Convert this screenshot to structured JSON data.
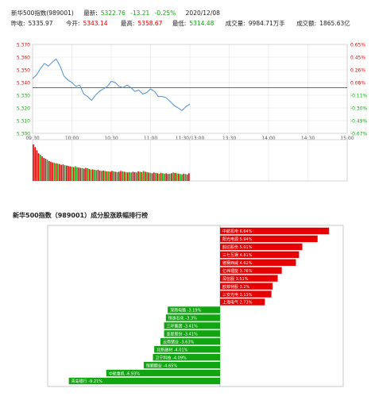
{
  "header": {
    "name": "新华500指数(989001)",
    "latest_label": "最新:",
    "latest_value": "5322.76",
    "change": "-13.21",
    "change_pct": "-0.25%",
    "date": "2020/12/08",
    "prev_close_label": "昨收:",
    "prev_close": "5335.97",
    "open_label": "今开:",
    "open": "5343.14",
    "high_label": "最高:",
    "high": "5358.67",
    "low_label": "最低:",
    "low": "5314.48",
    "volume_label": "成交量:",
    "volume": "9984.71万手",
    "turnover_label": "成交额:",
    "turnover": "1865.63亿"
  },
  "colors": {
    "up": "#e60000",
    "down": "#11a611",
    "price_line": "#4a90d9",
    "grid": "#e5e5e5",
    "ref_line": "#555555"
  },
  "chart_data": [
    {
      "type": "line",
      "xlabel": "",
      "ylabel": "",
      "ref_price": 5335.97,
      "ylim": [
        5300,
        5370
      ],
      "y_ticks_left": [
        "5.370",
        "5.360",
        "5.350",
        "5.340",
        "5.330",
        "5.320",
        "5.310",
        "5.300"
      ],
      "y_ticks_right": [
        "0.65%",
        "0.45%",
        "0.26%",
        "0.08%",
        "-0.11%",
        "-0.30%",
        "-0.49%",
        "-0.67%"
      ],
      "x_ticks": [
        "09:30",
        "10:00",
        "10:30",
        "11:00",
        "11:30/13:00",
        "13:30",
        "14:00",
        "14:30",
        "15:00"
      ],
      "x_minutes_total": 240,
      "series": [
        {
          "x_minutes": [
            0,
            3,
            6,
            9,
            12,
            15,
            18,
            21,
            24,
            27,
            30,
            33,
            36,
            39,
            42,
            45,
            48,
            51,
            54,
            57,
            60,
            63,
            66,
            69,
            72,
            75,
            78,
            81,
            84,
            87,
            90,
            93,
            96,
            99,
            102,
            105,
            108,
            111,
            114,
            117,
            120
          ],
          "values": [
            5343.1,
            5346,
            5351,
            5355,
            5353,
            5356,
            5358.5,
            5353,
            5345,
            5342,
            5340,
            5337,
            5338,
            5331,
            5329,
            5326,
            5330,
            5333,
            5335,
            5337,
            5341,
            5340,
            5337,
            5336,
            5338,
            5336,
            5333,
            5334,
            5331,
            5332,
            5335,
            5333,
            5329,
            5329,
            5328,
            5325,
            5322,
            5320,
            5318,
            5321,
            5323
          ]
        }
      ],
      "volume": {
        "values": [
          95,
          88,
          80,
          72,
          68,
          64,
          60,
          58,
          55,
          52,
          50,
          48,
          47,
          46,
          45,
          44,
          42,
          43,
          41,
          40,
          39,
          38,
          37,
          36,
          38,
          36,
          35,
          34,
          33,
          32,
          34,
          33,
          31,
          30,
          30,
          29,
          28,
          29,
          27,
          26,
          27,
          26,
          25,
          25,
          24,
          26,
          25,
          24,
          23,
          24,
          26,
          25,
          24,
          23,
          22,
          23,
          22,
          24,
          23,
          22,
          25,
          24,
          23,
          26,
          24,
          23,
          22,
          21,
          20,
          22,
          21,
          20,
          19,
          21,
          20,
          19,
          20,
          18,
          19,
          20,
          22,
          21,
          20,
          19,
          18,
          17,
          19,
          18,
          17,
          20
        ],
        "up_flags": [
          1,
          1,
          1,
          1,
          0,
          1,
          1,
          1,
          0,
          1,
          1,
          1,
          0,
          1,
          0,
          1,
          1,
          1,
          0,
          1,
          1,
          1,
          0,
          1,
          0,
          0,
          1,
          1,
          0,
          1,
          1,
          0,
          1,
          0,
          1,
          0,
          0,
          1,
          1,
          0,
          1,
          0,
          1,
          0,
          1,
          1,
          0,
          1,
          0,
          1,
          1,
          0,
          1,
          0,
          1,
          0,
          0,
          1,
          1,
          0,
          1,
          0,
          1,
          0,
          1,
          0,
          1,
          0,
          1,
          1,
          0,
          1,
          0,
          1,
          0,
          0,
          1,
          1,
          0,
          1,
          0,
          1,
          0,
          1,
          0,
          0,
          1,
          0,
          1,
          1
        ]
      }
    },
    {
      "type": "bar",
      "title": "新华500指数（989001）成分股涨跌幅排行榜",
      "xlim": [
        -10.5,
        7.5
      ],
      "categories": [
        "中航机电",
        "阳光电源",
        "韵达股份",
        "三七互娱",
        "德赛西威",
        "亿纬锂能",
        "深信服",
        "欧菲特股",
        "三安光电",
        "上海电气",
        "深南电路",
        "恒逸石化",
        "三环集团",
        "亚星股份",
        "云南锗业",
        "北新建材",
        "卫宁科技",
        "恒顺醋业",
        "中航重机",
        "青岛银行"
      ],
      "values": [
        6.64,
        5.94,
        5.01,
        4.81,
        4.62,
        3.76,
        3.51,
        3.2,
        3.13,
        2.73,
        -3.19,
        -3.3,
        -3.41,
        -3.41,
        -3.63,
        -4.01,
        -4.09,
        -4.65,
        -6.93,
        -9.21
      ],
      "labels": [
        "中航机电 6.64%",
        "阳光电源 5.94%",
        "韵达股份 5.01%",
        "三七互娱 4.81%",
        "德赛西威 4.62%",
        "亿纬锂能 3.76%",
        "深信服 3.51%",
        "欧菲特股 3.2%",
        "三安光电 3.13%",
        "上海电气 2.73%",
        "深南电路 -3.19%",
        "恒逸石化 -3.3%",
        "三环集团 -3.41%",
        "亚星股份 -3.41%",
        "云南锗业 -3.63%",
        "北新建材 -4.01%",
        "卫宁科技 -4.09%",
        "恒顺醋业 -4.65%",
        "中航重机 -6.93%",
        "青岛银行 -9.21%"
      ]
    }
  ]
}
